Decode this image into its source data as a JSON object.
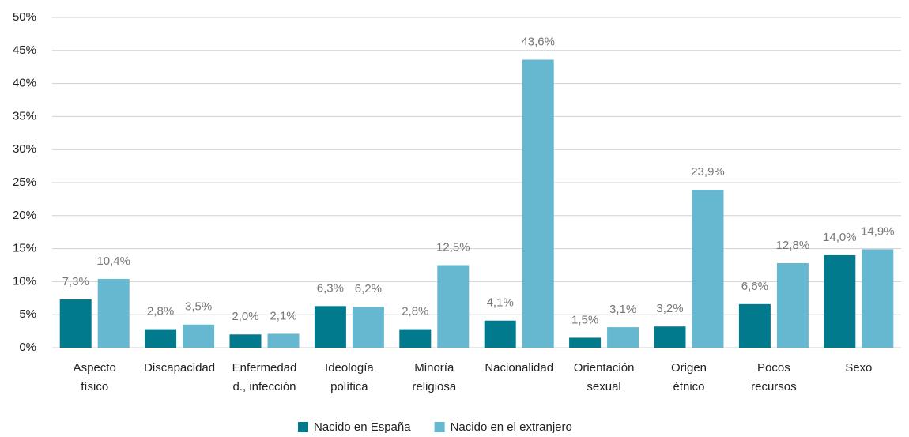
{
  "chart_data": {
    "type": "bar",
    "categories": [
      "Aspecto\nfísico",
      "Discapacidad",
      "Enfermedad\nd., infección",
      "Ideología\npolítica",
      "Minoría\nreligiosa",
      "Nacionalidad",
      "Orientación\nsexual",
      "Origen\nétnico",
      "Pocos\nrecursos",
      "Sexo"
    ],
    "series": [
      {
        "name": "Nacido en España",
        "color": "#007a8c",
        "values": [
          7.3,
          2.8,
          2.0,
          6.3,
          2.8,
          4.1,
          1.5,
          3.2,
          6.6,
          14.0
        ],
        "value_labels": [
          "7,3%",
          "2,8%",
          "2,0%",
          "6,3%",
          "2,8%",
          "4,1%",
          "1,5%",
          "3,2%",
          "6,6%",
          "14,0%"
        ]
      },
      {
        "name": "Nacido en el extranjero",
        "color": "#66b8d0",
        "values": [
          10.4,
          3.5,
          2.1,
          6.2,
          12.5,
          43.6,
          3.1,
          23.9,
          12.8,
          14.9
        ],
        "value_labels": [
          "10,4%",
          "3,5%",
          "2,1%",
          "6,2%",
          "12,5%",
          "43,6%",
          "3,1%",
          "23,9%",
          "12,8%",
          "14,9%"
        ]
      }
    ],
    "ylim": [
      0,
      50
    ],
    "yticks": [
      {
        "value": 0,
        "label": "0%"
      },
      {
        "value": 5,
        "label": "5%"
      },
      {
        "value": 10,
        "label": "10%"
      },
      {
        "value": 15,
        "label": "15%"
      },
      {
        "value": 20,
        "label": "20%"
      },
      {
        "value": 25,
        "label": "25%"
      },
      {
        "value": 30,
        "label": "30%"
      },
      {
        "value": 35,
        "label": "35%"
      },
      {
        "value": 40,
        "label": "40%"
      },
      {
        "value": 45,
        "label": "45%"
      },
      {
        "value": 50,
        "label": "50%"
      }
    ],
    "grid": true,
    "legend": "bottom"
  }
}
